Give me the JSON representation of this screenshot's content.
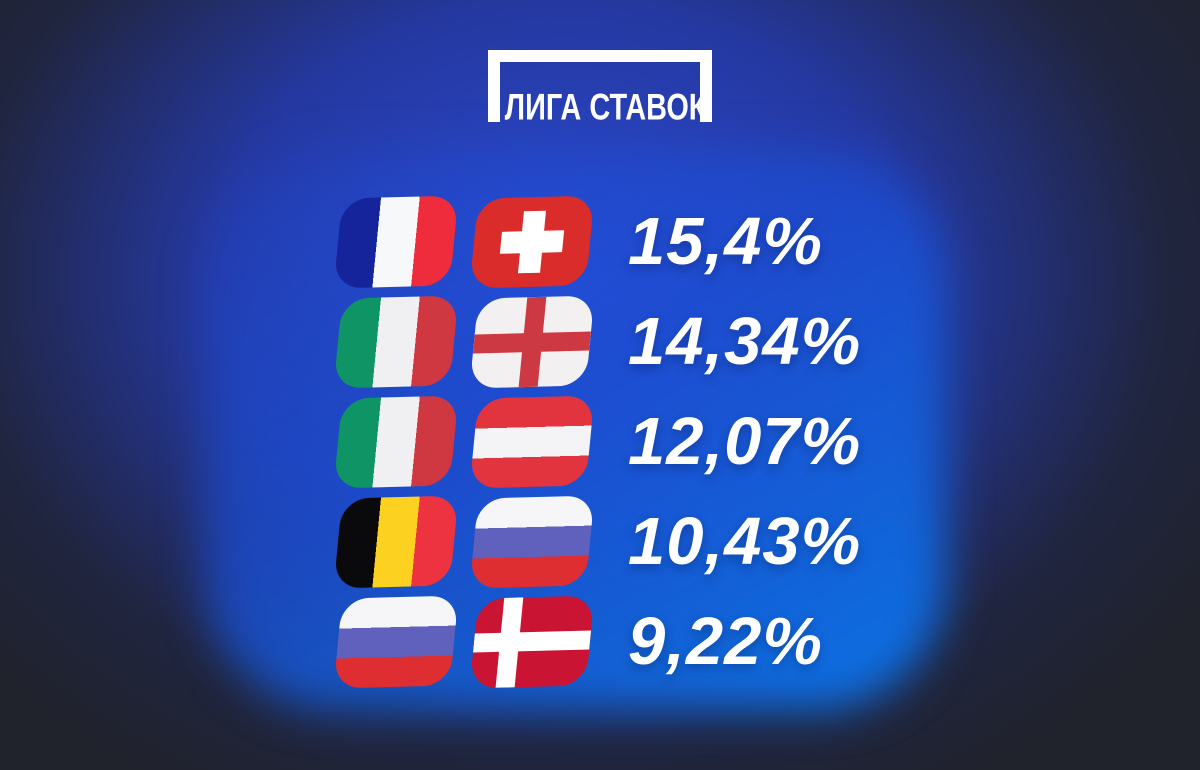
{
  "brand": {
    "logo_text": "ЛИГА СТАВОК"
  },
  "rows": [
    {
      "pair": [
        "france",
        "switzerland"
      ],
      "countries": [
        "France",
        "Switzerland"
      ],
      "value": "15,4%"
    },
    {
      "pair": [
        "italy",
        "england"
      ],
      "countries": [
        "Italy",
        "England"
      ],
      "value": "14,34%"
    },
    {
      "pair": [
        "italy",
        "austria"
      ],
      "countries": [
        "Italy",
        "Austria"
      ],
      "value": "12,07%"
    },
    {
      "pair": [
        "belgium",
        "russia"
      ],
      "countries": [
        "Belgium",
        "Russia"
      ],
      "value": "10,43%"
    },
    {
      "pair": [
        "russia",
        "denmark"
      ],
      "countries": [
        "Russia",
        "Denmark"
      ],
      "value": "9,22%"
    }
  ],
  "colors": {
    "background_dark": "#20222c",
    "glow_blue": "#2d4ddc",
    "panel_bright_blue": "#0d71e8",
    "text_white": "#ffffff"
  },
  "chart_data": {
    "type": "table",
    "title": "ЛИГА СТАВОК",
    "categories": [
      "France – Switzerland",
      "Italy – England",
      "Italy – Austria",
      "Belgium – Russia",
      "Russia – Denmark"
    ],
    "values": [
      15.4,
      14.34,
      12.07,
      10.43,
      9.22
    ],
    "value_labels": [
      "15,4%",
      "14,34%",
      "12,07%",
      "10,43%",
      "9,22%"
    ],
    "unit": "%"
  }
}
